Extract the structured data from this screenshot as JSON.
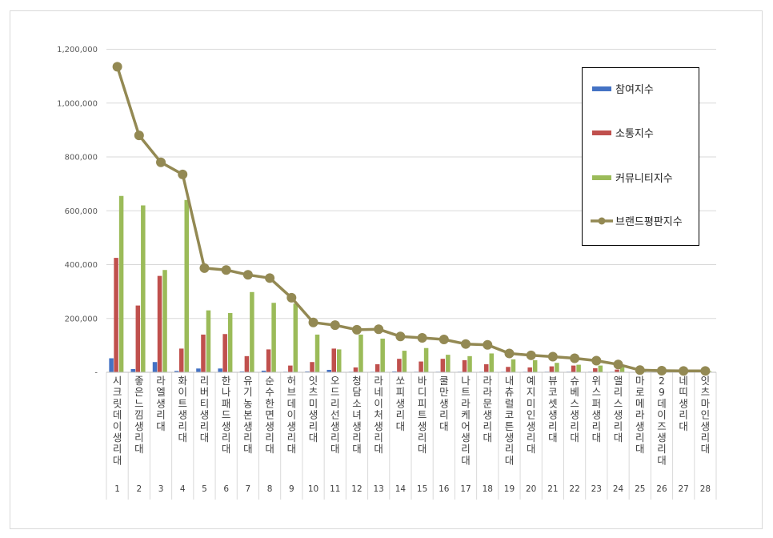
{
  "chart_data": {
    "type": "bar",
    "y_ticks": [
      "1,200,000",
      "1,000,000",
      "800,000",
      "600,000",
      "400,000",
      "200,000",
      "-"
    ],
    "ylim": [
      0,
      1200000
    ],
    "grid": true,
    "legend_position": "top-right",
    "categories": [
      "시크릿데이생리대",
      "좋은느낌생리대",
      "라엘생리대",
      "화이트생리대",
      "리버티생리대",
      "한나패드생리대",
      "유기농본생리대",
      "순수한면생리대",
      "허브데이생리대",
      "잇츠미생리대",
      "오드리선생리대",
      "청담소녀생리대",
      "라네이처생리대",
      "쏘피생리대",
      "바디피트생리대",
      "쿨만생리대",
      "나트라케어생리대",
      "라라문생리대",
      "내츄럴코튼생리대",
      "예지미인생리대",
      "뷰코셋생리대",
      "슈베스생리대",
      "위스퍼생리대",
      "앨리스생리대",
      "마로메라생리대",
      "29데이즈생리대",
      "네띠생리대",
      "잇츠마인생리대"
    ],
    "index_labels": [
      "1",
      "2",
      "3",
      "4",
      "5",
      "6",
      "7",
      "8",
      "9",
      "10",
      "11",
      "12",
      "13",
      "14",
      "15",
      "16",
      "17",
      "18",
      "19",
      "20",
      "21",
      "22",
      "23",
      "24",
      "25",
      "26",
      "27",
      "28"
    ],
    "series": [
      {
        "name": "참여지수",
        "kind": "bar",
        "color": "#4472c4",
        "values": [
          52000,
          12000,
          38000,
          5000,
          14000,
          14000,
          3000,
          6000,
          2000,
          3000,
          9000,
          2000,
          2000,
          3000,
          2000,
          2000,
          2000,
          2000,
          2000,
          2000,
          2000,
          2000,
          2000,
          2000,
          1000,
          1000,
          1000,
          1000
        ]
      },
      {
        "name": "소통지수",
        "kind": "bar",
        "color": "#c0504d",
        "values": [
          425000,
          248000,
          358000,
          88000,
          140000,
          142000,
          60000,
          85000,
          25000,
          38000,
          88000,
          18000,
          30000,
          50000,
          40000,
          50000,
          45000,
          30000,
          20000,
          18000,
          22000,
          25000,
          15000,
          10000,
          5000,
          3000,
          2000,
          2000
        ]
      },
      {
        "name": "커뮤니티지수",
        "kind": "bar",
        "color": "#9bbb59",
        "values": [
          655000,
          620000,
          380000,
          640000,
          230000,
          220000,
          298000,
          258000,
          255000,
          140000,
          85000,
          140000,
          125000,
          80000,
          90000,
          65000,
          60000,
          70000,
          48000,
          45000,
          35000,
          28000,
          25000,
          22000,
          6000,
          5000,
          4000,
          4000
        ]
      },
      {
        "name": "브랜드평판지수",
        "kind": "line",
        "color": "#938953",
        "values": [
          1135000,
          880000,
          780000,
          735000,
          387000,
          380000,
          362000,
          350000,
          277000,
          185000,
          175000,
          158000,
          160000,
          133000,
          128000,
          122000,
          105000,
          102000,
          70000,
          63000,
          58000,
          52000,
          43000,
          29000,
          8000,
          6000,
          5000,
          5000
        ]
      }
    ]
  }
}
